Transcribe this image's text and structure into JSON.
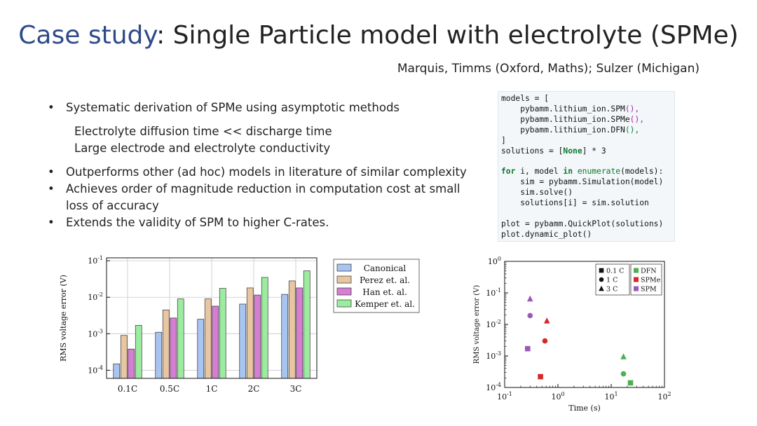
{
  "slide": {
    "title_accent": "Case study",
    "title_rest": ": Single Particle model with electrolyte (SPMe)",
    "authors": "Marquis, Timms (Oxford, Maths); Sulzer (Michigan)"
  },
  "bullets": {
    "b1": "Systematic derivation of SPMe using asymptotic methods",
    "b1_sub1": "Electrolyte diffusion time << discharge time",
    "b1_sub2": "Large electrode and electrolyte conductivity",
    "b2": "Outperforms other (ad hoc) models in literature of similar complexity",
    "b3": "Achieves order of magnitude reduction in computation cost at small loss of accuracy",
    "b4": "Extends the validity of SPM to higher C-rates.",
    "bullet_glyph": "•"
  },
  "code": {
    "l1a": "models = [",
    "l2a": "    pybamm.lithium_ion.SPM",
    "l2b": "(),",
    "l3a": "    pybamm.lithium_ion.SPMe",
    "l3b": "(),",
    "l4a": "    pybamm.lithium_ion.DFN",
    "l4b": "(),",
    "l5": "]",
    "l6a": "solutions = [",
    "l6b": "None",
    "l6c": "] * 3",
    "l8a": "for",
    "l8b": " i, model ",
    "l8c": "in",
    "l8d": " ",
    "l8e": "enumerate",
    "l8f": "(models):",
    "l9": "    sim = pybamm.Simulation(model)",
    "l10": "    sim.solve()",
    "l11": "    solutions[i] = sim.solution",
    "l13": "plot = pybamm.QuickPlot(solutions)",
    "l14": "plot.dynamic_plot()"
  },
  "chart_data": [
    {
      "type": "bar",
      "title": "",
      "xlabel": "",
      "ylabel": "RMS voltage error (V)",
      "yscale": "log",
      "ylim": [
        6e-05,
        0.12
      ],
      "yticks": [
        "10^{-4}",
        "10^{-3}",
        "10^{-2}",
        "10^{-1}"
      ],
      "categories": [
        "0.1C",
        "0.5C",
        "1C",
        "2C",
        "3C"
      ],
      "series": [
        {
          "name": "Canonical",
          "color": "#a8c4f0",
          "values": [
            0.00015,
            0.0011,
            0.0025,
            0.0065,
            0.012
          ]
        },
        {
          "name": "Perez et. al.",
          "color": "#e8c6a2",
          "values": [
            0.0009,
            0.0045,
            0.009,
            0.018,
            0.028
          ]
        },
        {
          "name": "Han et. al.",
          "color": "#d57ed4",
          "values": [
            0.00038,
            0.0027,
            0.0057,
            0.0115,
            0.018
          ]
        },
        {
          "name": "Kemper et. al.",
          "color": "#9ceca0",
          "values": [
            0.0017,
            0.009,
            0.0175,
            0.035,
            0.053
          ]
        }
      ]
    },
    {
      "type": "scatter",
      "title": "",
      "xlabel": "Time (s)",
      "ylabel": "RMS voltage error (V)",
      "xscale": "log",
      "yscale": "log",
      "xlim": [
        0.1,
        100
      ],
      "ylim": [
        0.0001,
        1
      ],
      "xticks": [
        "10^{-1}",
        "10^{0}",
        "10^{1}",
        "10^{2}"
      ],
      "yticks": [
        "10^{-4}",
        "10^{-3}",
        "10^{-2}",
        "10^{-1}",
        "10^{0}"
      ],
      "legend_rates": [
        {
          "label": "0.1 C",
          "marker": "square"
        },
        {
          "label": "1 C",
          "marker": "circle"
        },
        {
          "label": "3 C",
          "marker": "triangle"
        }
      ],
      "legend_models": [
        {
          "label": "DFN",
          "color": "#4caf50"
        },
        {
          "label": "SPMe",
          "color": "#d62828"
        },
        {
          "label": "SPM",
          "color": "#9b59b6"
        }
      ],
      "points": [
        {
          "model": "SPM",
          "marker": "triangle",
          "x": 0.3,
          "y": 0.065,
          "color": "#9b59b6"
        },
        {
          "model": "SPM",
          "marker": "circle",
          "x": 0.3,
          "y": 0.019,
          "color": "#9b59b6"
        },
        {
          "model": "SPM",
          "marker": "square",
          "x": 0.27,
          "y": 0.0017,
          "color": "#9b59b6"
        },
        {
          "model": "SPMe",
          "marker": "triangle",
          "x": 0.62,
          "y": 0.013,
          "color": "#d62828"
        },
        {
          "model": "SPMe",
          "marker": "circle",
          "x": 0.57,
          "y": 0.003,
          "color": "#d62828"
        },
        {
          "model": "SPMe",
          "marker": "square",
          "x": 0.47,
          "y": 0.00022,
          "color": "#d62828"
        },
        {
          "model": "DFN",
          "marker": "triangle",
          "x": 17,
          "y": 0.00095,
          "color": "#4caf50"
        },
        {
          "model": "DFN",
          "marker": "circle",
          "x": 17,
          "y": 0.00027,
          "color": "#4caf50"
        },
        {
          "model": "DFN",
          "marker": "square",
          "x": 23,
          "y": 0.00014,
          "color": "#4caf50"
        }
      ]
    }
  ]
}
